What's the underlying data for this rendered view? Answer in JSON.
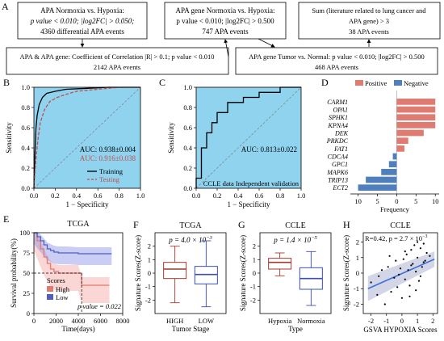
{
  "panels": {
    "A": "A",
    "B": "B",
    "C": "C",
    "D": "D",
    "E": "E",
    "F": "F",
    "G": "G",
    "H": "H"
  },
  "flow": {
    "box1": [
      "APA Normoxia vs. Hypoxia:",
      "p value < 0.010; |log2FC| > 0.050;",
      "4360 differential APA events"
    ],
    "box2": [
      "APA gene Normoxia vs. Hypoxia:",
      "p value < 0.010; |log2FC| > 0.500",
      "747 APA events"
    ],
    "box3": [
      "Sum (literature related to lung cancer and",
      "APA gene) > 3",
      "38 APA events"
    ],
    "box4": [
      "APA & APA gene: Coefficient of Correlation |R| > 0.1; p value < 0.010",
      "2142 APA events"
    ],
    "box5": [
      "APA gene Tumor vs. Normal: p value < 0.010; |log2FC| > 0.500",
      "468 APA events"
    ]
  },
  "chart_data": [
    {
      "type": "line",
      "panel": "B",
      "xlabel": "1 − Specificity",
      "ylabel": "Sensitivity",
      "xlim": [
        0,
        1
      ],
      "ylim": [
        0,
        1
      ],
      "xticks": [
        "0.0",
        "0.2",
        "0.4",
        "0.6",
        "0.8",
        "1.0"
      ],
      "yticks": [
        "0.0",
        "0.2",
        "0.4",
        "0.6",
        "0.8",
        "1.0"
      ],
      "annotations": [
        "AUC: 0.938±0.004",
        "AUC: 0.916±0.038"
      ],
      "series": [
        {
          "name": "Training",
          "color": "#000000",
          "x": [
            0,
            0.01,
            0.02,
            0.03,
            0.05,
            0.08,
            0.12,
            0.2,
            0.3,
            0.5,
            0.7,
            1.0
          ],
          "y": [
            0,
            0.35,
            0.6,
            0.72,
            0.83,
            0.9,
            0.94,
            0.96,
            0.98,
            0.99,
            1.0,
            1.0
          ]
        },
        {
          "name": "Testing",
          "color": "#c0504d",
          "x": [
            0,
            0.02,
            0.04,
            0.06,
            0.1,
            0.15,
            0.22,
            0.3,
            0.4,
            0.6,
            0.8,
            1.0
          ],
          "y": [
            0,
            0.3,
            0.5,
            0.65,
            0.78,
            0.86,
            0.9,
            0.93,
            0.96,
            0.98,
            1.0,
            1.0
          ]
        }
      ]
    },
    {
      "type": "line",
      "panel": "C",
      "xlabel": "1 − Specificity",
      "ylabel": "Sensitivity",
      "xlim": [
        0,
        1
      ],
      "ylim": [
        0,
        1
      ],
      "xticks": [
        "0.0",
        "0.2",
        "0.4",
        "0.6",
        "0.8",
        "1.0"
      ],
      "yticks": [
        "0.0",
        "0.2",
        "0.4",
        "0.6",
        "0.8",
        "1.0"
      ],
      "annotations": [
        "AUC: 0.813±0.022",
        "CCLE data Independent validation"
      ],
      "series": [
        {
          "name": "",
          "color": "#000000",
          "x": [
            0,
            0,
            0.05,
            0.05,
            0.1,
            0.1,
            0.15,
            0.15,
            0.2,
            0.2,
            0.3,
            0.3,
            0.45,
            0.45,
            0.6,
            0.6,
            0.8,
            0.8,
            1.0
          ],
          "y": [
            0,
            0.1,
            0.1,
            0.4,
            0.4,
            0.55,
            0.55,
            0.65,
            0.65,
            0.75,
            0.75,
            0.85,
            0.85,
            0.9,
            0.9,
            0.95,
            0.95,
            1.0,
            1.0
          ]
        }
      ]
    },
    {
      "type": "bar",
      "panel": "D",
      "categories": [
        "CARM1",
        "OPA1",
        "SPHK1",
        "KPNA4",
        "DEK",
        "PRKDC",
        "FAT1",
        "CDCA4",
        "GPC1",
        "MAPK6",
        "TRIP13",
        "ECT2"
      ],
      "values": [
        10,
        10,
        10,
        10,
        7,
        3,
        2,
        -1,
        -2,
        -4,
        -8,
        -10
      ],
      "xlabel": "Frequency",
      "xlim": [
        -12,
        11
      ],
      "xticks": [
        "10",
        "5",
        "0",
        "5",
        "10"
      ],
      "legend": [
        "Positive",
        "Negative"
      ],
      "colors": {
        "positive": "#e07b72",
        "negative": "#4f7fbd"
      }
    },
    {
      "type": "line",
      "panel": "E",
      "title": "TCGA",
      "xlabel": "Time(days)",
      "ylabel": "Survival probability(%)",
      "xlim": [
        0,
        8000
      ],
      "ylim": [
        0,
        100
      ],
      "xticks": [
        "0",
        "2000",
        "4000",
        "6000",
        "8000"
      ],
      "yticks": [
        "0",
        "25",
        "50",
        "75",
        "100"
      ],
      "legend_title": "Scores",
      "annotation": "p value = 0.022",
      "series": [
        {
          "name": "High",
          "color": "#e07b72",
          "x": [
            0,
            300,
            600,
            900,
            1200,
            1500,
            1800,
            2200,
            2600,
            3000,
            4000,
            4300,
            5000,
            6000,
            6800
          ],
          "y": [
            100,
            90,
            80,
            70,
            62,
            55,
            52,
            50,
            50,
            50,
            50,
            35,
            35,
            35,
            35
          ]
        },
        {
          "name": "Low",
          "color": "#4f5fbd",
          "x": [
            0,
            300,
            600,
            900,
            1200,
            1500,
            1800,
            2200,
            3000,
            4000,
            5000,
            6000,
            7000
          ],
          "y": [
            100,
            95,
            90,
            85,
            80,
            78,
            76,
            75,
            75,
            74,
            74,
            74,
            74
          ]
        }
      ]
    },
    {
      "type": "box",
      "panel": "F",
      "title": "TCGA",
      "pvalue": "p = 4.0 × 10",
      "pexp": "−3",
      "xlabel": "Tumor Stage",
      "ylabel": "Signature Scores(Z-score)",
      "ylim": [
        -3,
        3
      ],
      "yticks": [
        "-2",
        "-1",
        "0",
        "1",
        "2"
      ],
      "categories": [
        "HIGH",
        "LOW"
      ],
      "boxes": [
        {
          "q1": -0.4,
          "median": 0.3,
          "q3": 0.8,
          "min": -2.2,
          "max": 2.0,
          "color": "#a33a2d"
        },
        {
          "q1": -0.8,
          "median": -0.1,
          "q3": 0.5,
          "min": -2.5,
          "max": 2.4,
          "color": "#3a4fb5"
        }
      ]
    },
    {
      "type": "box",
      "panel": "G",
      "title": "CCLE",
      "pvalue": "p = 1.4 × 10",
      "pexp": "−5",
      "xlabel": "Type",
      "ylabel": "Signature Scores(Z-score)",
      "ylim": [
        -3,
        3
      ],
      "yticks": [
        "-2",
        "-1",
        "0",
        "1",
        "2"
      ],
      "categories": [
        "Hypoxia",
        "Normoxia"
      ],
      "boxes": [
        {
          "q1": 0.3,
          "median": 0.8,
          "q3": 1.1,
          "min": -0.2,
          "max": 1.5,
          "color": "#a33a2d"
        },
        {
          "q1": -1.2,
          "median": -0.4,
          "q3": 0.4,
          "min": -2.4,
          "max": 1.6,
          "color": "#3a4fb5"
        }
      ]
    },
    {
      "type": "scatter",
      "panel": "H",
      "title": "CCLE",
      "annotation": "R=0.42, p = 2.7 × 10",
      "annot_exp": "−3",
      "xlabel": "GSVA HYPOXIA Scores",
      "ylabel": "Signature Scores(Z-score)",
      "xlim": [
        -2.5,
        2.3
      ],
      "ylim": [
        -2.6,
        2.6
      ],
      "xticks": [
        "-2",
        "-1",
        "0",
        "1",
        "2"
      ],
      "yticks": [
        "-2",
        "-1",
        "0",
        "1",
        "2"
      ],
      "fit": {
        "x": [
          -2.2,
          2.1
        ],
        "y": [
          -1.0,
          0.9
        ]
      },
      "x": [
        -2.0,
        -1.6,
        -1.3,
        -1.1,
        -0.9,
        -0.7,
        -0.5,
        -0.4,
        -0.3,
        -0.1,
        0.0,
        0.1,
        0.2,
        0.3,
        0.4,
        0.5,
        0.6,
        0.7,
        0.8,
        0.9,
        1.0,
        1.1,
        1.2,
        1.3,
        1.4,
        1.5,
        1.6,
        0.9,
        1.2,
        0.6,
        0.2,
        -0.2,
        -0.8,
        1.0,
        1.4,
        0.5,
        -1.5,
        1.8
      ],
      "y": [
        -0.6,
        -1.4,
        0.2,
        -2.0,
        0.4,
        -1.2,
        -0.3,
        0.8,
        -0.9,
        0.3,
        -1.6,
        0.9,
        -0.4,
        1.2,
        0.2,
        -0.8,
        1.5,
        0.6,
        1.8,
        0.1,
        1.0,
        -0.5,
        1.6,
        0.4,
        1.9,
        0.8,
        1.3,
        -1.1,
        -0.2,
        0.5,
        1.4,
        -0.1,
        1.1,
        2.0,
        0.7,
        -1.5,
        -0.2,
        1.1
      ]
    }
  ]
}
